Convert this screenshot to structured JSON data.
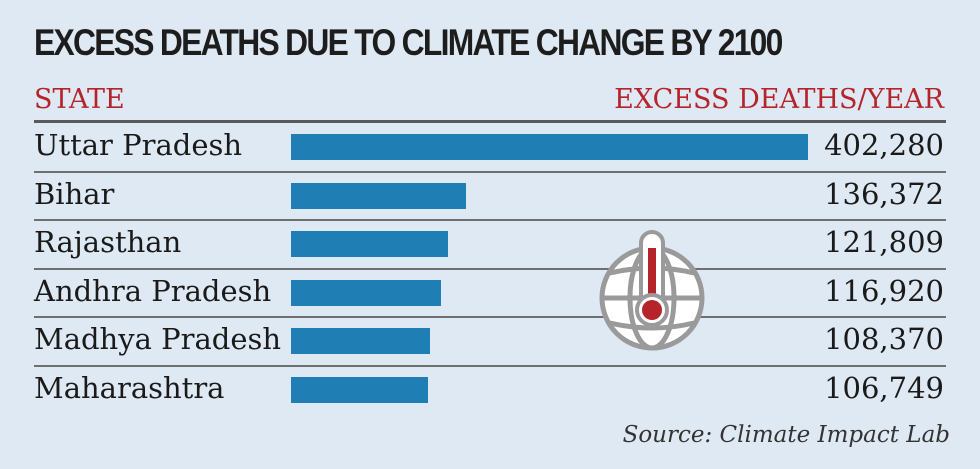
{
  "title": "EXCESS DEATHS DUE TO CLIMATE CHANGE BY 2100",
  "headers": {
    "state": "STATE",
    "value": "EXCESS DEATHS/YEAR"
  },
  "source": "Source: Climate Impact Lab",
  "icon": "globe-thermometer-icon",
  "colors": {
    "bar": "#1f7eb3",
    "header": "#b5232b",
    "icon": "#b5232b",
    "background": "#dfe9f3"
  },
  "chart_data": {
    "type": "bar",
    "orientation": "horizontal",
    "title": "EXCESS DEATHS DUE TO CLIMATE CHANGE BY 2100",
    "xlabel": "EXCESS DEATHS/YEAR",
    "ylabel": "STATE",
    "categories": [
      "Uttar Pradesh",
      "Bihar",
      "Rajasthan",
      "Andhra Pradesh",
      "Madhya Pradesh",
      "Maharashtra"
    ],
    "values": [
      402280,
      136372,
      121809,
      116920,
      108370,
      106749
    ],
    "value_labels": [
      "402,280",
      "136,372",
      "121,809",
      "116,920",
      "108,370",
      "106,749"
    ],
    "xlim": [
      0,
      402280
    ],
    "grid": false,
    "legend": "none"
  }
}
